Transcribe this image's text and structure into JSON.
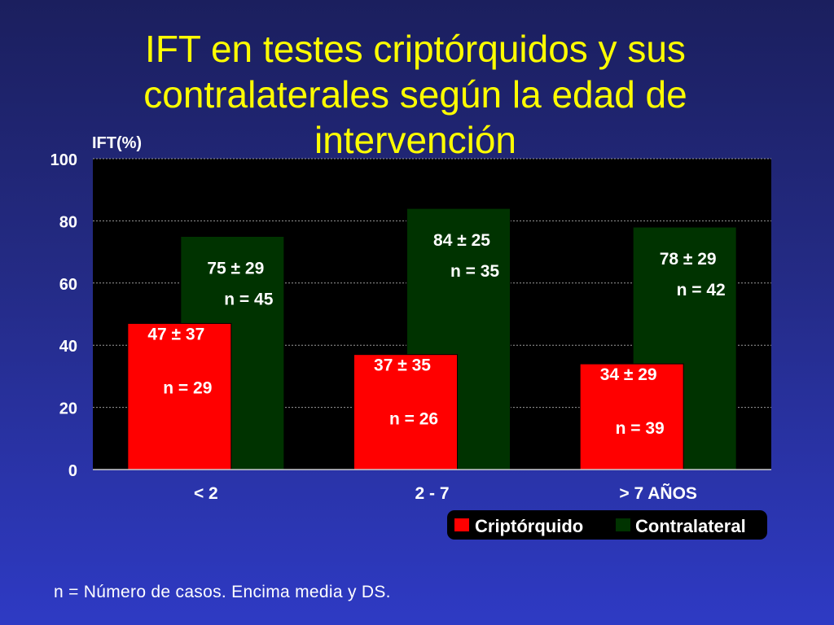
{
  "title": "IFT en testes criptórquidos y sus contralaterales según la edad de intervención",
  "footnote": "n = Número de casos. Encima media y DS.",
  "colors": {
    "criptorquido": "#ff0000",
    "contralateral": "#003300",
    "plot_background": "#000000",
    "title_text": "#ffff00"
  },
  "chart_data": {
    "type": "bar",
    "ylabel": "IFT(%)",
    "xlabel": "",
    "ylim": [
      0,
      100
    ],
    "yticks": [
      0,
      20,
      40,
      60,
      80,
      100
    ],
    "grid": true,
    "legend_position": "bottom-right",
    "categories": [
      "< 2",
      "2 - 7",
      "> 7 AÑOS"
    ],
    "series": [
      {
        "name": "Criptórquido",
        "values": [
          47,
          37,
          34
        ],
        "labels": [
          "47 ± 37",
          "37 ± 35",
          "34 ± 29"
        ],
        "n_labels": [
          "n = 29",
          "n = 26",
          "n = 39"
        ]
      },
      {
        "name": "Contralateral",
        "values": [
          75,
          84,
          78
        ],
        "labels": [
          "75 ± 29",
          "84 ± 25",
          "78 ± 29"
        ],
        "n_labels": [
          "n = 45",
          "n = 35",
          "n = 42"
        ]
      }
    ]
  }
}
